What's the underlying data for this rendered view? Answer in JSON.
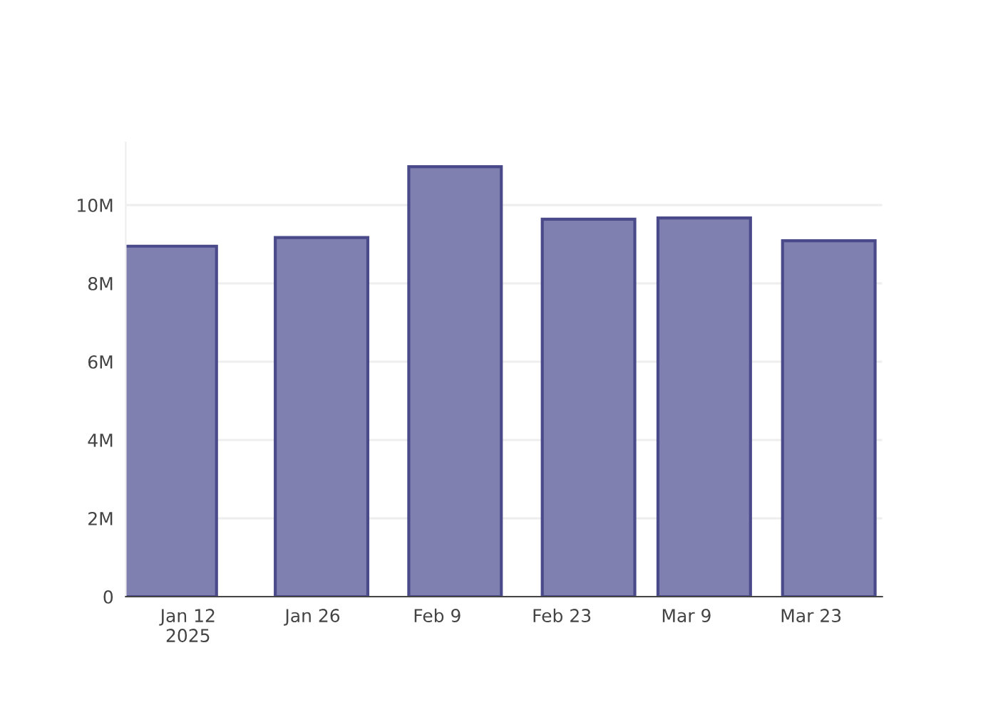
{
  "chart_data": {
    "type": "bar",
    "x": [
      "2025-01-10",
      "2025-01-27",
      "2025-02-11",
      "2025-02-26",
      "2025-03-11",
      "2025-03-25"
    ],
    "values": [
      8950000,
      9170000,
      10980000,
      9640000,
      9670000,
      9090000
    ],
    "color": "#7f7fb0",
    "xlim": [
      "2025-01-05",
      "2025-03-31"
    ],
    "xticks": [
      {
        "value": "2025-01-12",
        "label": "Jan 12\n2025"
      },
      {
        "value": "2025-01-26",
        "label": "Jan 26"
      },
      {
        "value": "2025-02-09",
        "label": "Feb 9"
      },
      {
        "value": "2025-02-23",
        "label": "Feb 23"
      },
      {
        "value": "2025-03-09",
        "label": "Mar 9"
      },
      {
        "value": "2025-03-23",
        "label": "Mar 23"
      }
    ],
    "yticks": [
      {
        "value": 0,
        "label": "0"
      },
      {
        "value": 2000000,
        "label": "2M"
      },
      {
        "value": 4000000,
        "label": "4M"
      },
      {
        "value": 6000000,
        "label": "6M"
      },
      {
        "value": 8000000,
        "label": "8M"
      },
      {
        "value": 10000000,
        "label": "10M"
      }
    ],
    "ylim": [
      0,
      11600000
    ],
    "grid": "y"
  }
}
